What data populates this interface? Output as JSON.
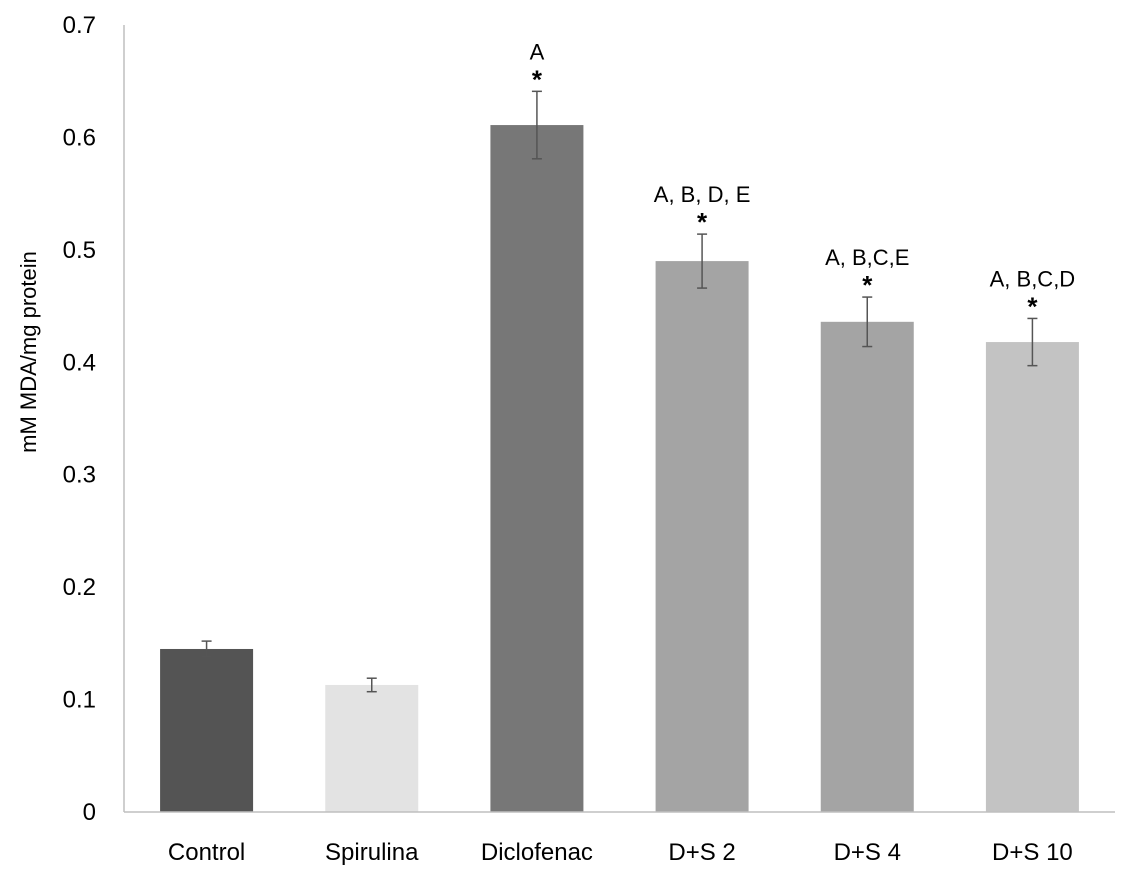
{
  "chart_data": {
    "type": "bar",
    "title": "",
    "xlabel": "",
    "ylabel": "mM MDA/mg protein",
    "ylim": [
      0,
      0.7
    ],
    "yticks": [
      "0",
      "0.1",
      "0.2",
      "0.3",
      "0.4",
      "0.5",
      "0.6",
      "0.7"
    ],
    "grid": false,
    "categories": [
      "Control",
      "Spirulina",
      "Diclofenac",
      "D+S 2",
      "D+S 4",
      "D+S 10"
    ],
    "values": [
      0.145,
      0.113,
      0.611,
      0.49,
      0.436,
      0.418
    ],
    "errors": [
      0.007,
      0.006,
      0.03,
      0.024,
      0.022,
      0.021
    ],
    "colors": [
      "#545454",
      "#e3e3e3",
      "#777777",
      "#a4a4a4",
      "#a4a4a4",
      "#c3c3c3"
    ],
    "annotations": [
      "",
      "",
      "A",
      "A, B, D, E",
      "A, B,C,E",
      "A, B,C,D"
    ],
    "significance": [
      "",
      "",
      "*",
      "*",
      "*",
      "*"
    ]
  }
}
